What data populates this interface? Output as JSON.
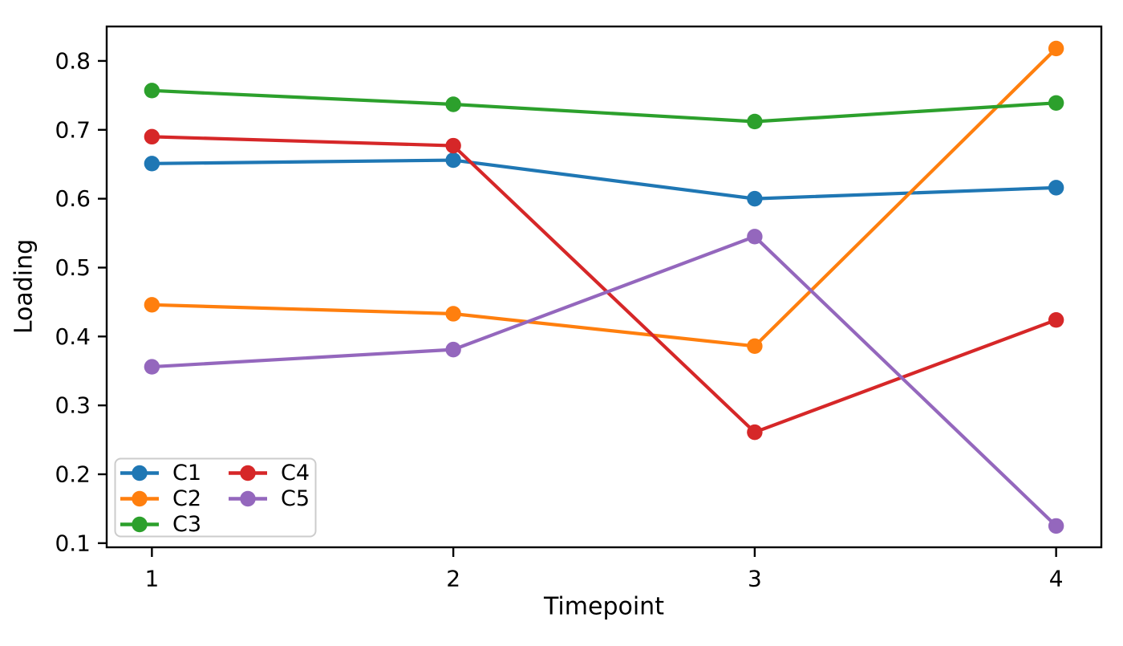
{
  "figure": {
    "background": "#ffffff",
    "axis_color": "#000000",
    "legend_border_color": "#cccccc"
  },
  "chart_data": {
    "type": "line",
    "title": "",
    "xlabel": "Timepoint",
    "ylabel": "Loading",
    "x": [
      1,
      2,
      3,
      4
    ],
    "xtick_labels": [
      "1",
      "2",
      "3",
      "4"
    ],
    "ytick_values": [
      0.1,
      0.2,
      0.3,
      0.4,
      0.5,
      0.6,
      0.7,
      0.8
    ],
    "ytick_labels": [
      "0.1",
      "0.2",
      "0.3",
      "0.4",
      "0.5",
      "0.6",
      "0.7",
      "0.8"
    ],
    "xlim": [
      0.85,
      4.15
    ],
    "ylim": [
      0.094,
      0.85
    ],
    "grid": false,
    "marker": "circle",
    "legend": {
      "position": "lower-left",
      "columns": 2,
      "entries": [
        "C1",
        "C2",
        "C3",
        "C4",
        "C5"
      ]
    },
    "series": [
      {
        "name": "C1",
        "color": "#1f77b4",
        "values": [
          0.651,
          0.656,
          0.6,
          0.616
        ]
      },
      {
        "name": "C2",
        "color": "#ff7f0e",
        "values": [
          0.446,
          0.433,
          0.386,
          0.818
        ]
      },
      {
        "name": "C3",
        "color": "#2ca02c",
        "values": [
          0.757,
          0.737,
          0.712,
          0.739
        ]
      },
      {
        "name": "C4",
        "color": "#d62728",
        "values": [
          0.69,
          0.677,
          0.261,
          0.424
        ]
      },
      {
        "name": "C5",
        "color": "#9467bd",
        "values": [
          0.356,
          0.381,
          0.545,
          0.125
        ]
      }
    ]
  }
}
